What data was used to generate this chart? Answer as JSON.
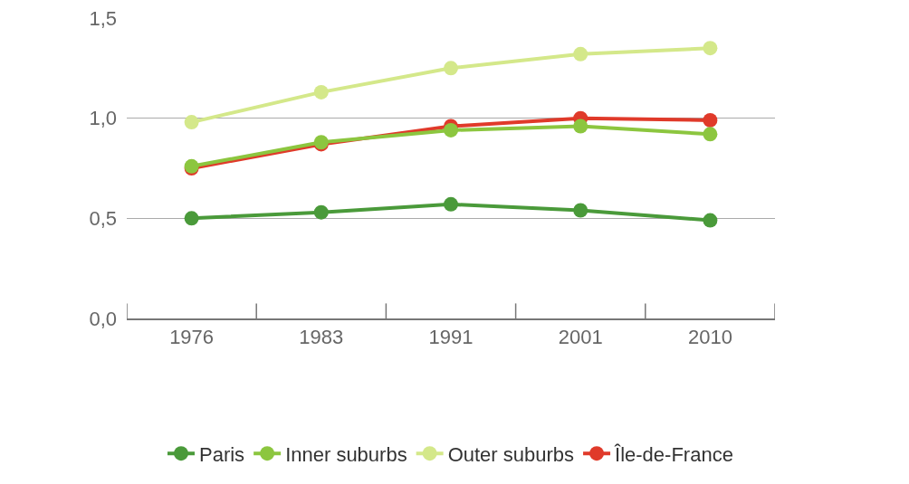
{
  "chart_data": {
    "type": "line",
    "categories": [
      "1976",
      "1983",
      "1991",
      "2001",
      "2010"
    ],
    "series": [
      {
        "name": "Paris",
        "color": "#4a9a3a",
        "values": [
          0.5,
          0.53,
          0.57,
          0.54,
          0.49
        ]
      },
      {
        "name": "Inner suburbs",
        "color": "#8cc63f",
        "values": [
          0.76,
          0.88,
          0.94,
          0.96,
          0.92
        ]
      },
      {
        "name": "Outer suburbs",
        "color": "#d4e88a",
        "values": [
          0.98,
          1.13,
          1.25,
          1.32,
          1.35
        ]
      },
      {
        "name": "Île-de-France",
        "color": "#e03a2a",
        "values": [
          0.75,
          0.87,
          0.96,
          1.0,
          0.99
        ]
      }
    ],
    "ylim": [
      0,
      1.5
    ],
    "yticks": [
      {
        "value": 0,
        "label": "0,0"
      },
      {
        "value": 0.5,
        "label": "0,5"
      },
      {
        "value": 1,
        "label": "1,0"
      },
      {
        "value": 1.5,
        "label": "1,5"
      }
    ],
    "grid": "y",
    "legend": "bottom",
    "marker": "circle",
    "line_style": "solid"
  }
}
